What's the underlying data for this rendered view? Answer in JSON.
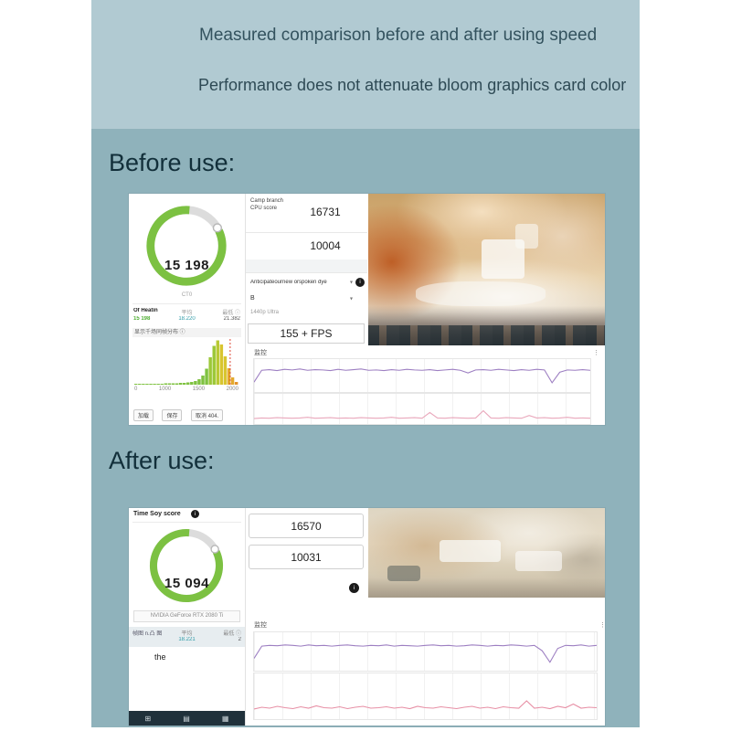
{
  "header": {
    "line1": "Measured comparison before and after using speed",
    "line2": "Performance does not attenuate bloom graphics card color"
  },
  "before": {
    "section_title": "Before use:",
    "gauge_card": {
      "score": "15 198",
      "sub_label": "CT0",
      "stats_header": [
        "Of Heatin",
        "平均",
        "最低 ⓘ"
      ],
      "stats_values": [
        "15 198",
        "18.220",
        "21.382"
      ],
      "hist_title": "显示千场同帧分布 ⓘ",
      "hist_axis": [
        "0",
        "1000",
        "1500",
        "2000"
      ],
      "footer_buttons": [
        "加载",
        "保存",
        "取消 404."
      ]
    },
    "score_panel": {
      "cpu_label": "Camp branch CPU score",
      "cpu_value": "16731",
      "value2": "10004",
      "dropdown1": "Anticipateournew orspoken dye",
      "dropdown2": "B",
      "preset": "1440p Ultra",
      "fps": "155 + FPS",
      "info_icon": "i"
    },
    "monitor": {
      "label": "监控",
      "menu_glyph": "⋮"
    }
  },
  "after": {
    "section_title": "After use:",
    "gauge_card": {
      "title": "Time Soy score",
      "info_icon": "i",
      "score": "15 094",
      "gpu_name": "NVIDIA GeForce RTX 2080 Ti",
      "stats_header": [
        "帧图 n.凸 图",
        "平均",
        "最低 ⓘ"
      ],
      "stats_values": [
        "",
        "18.221",
        "2"
      ],
      "note": "the",
      "taskbar_icons": [
        "⊞",
        "▤",
        "▦"
      ]
    },
    "score_panel": {
      "value1": "16570",
      "value2": "10031",
      "info_icon": "i"
    },
    "monitor": {
      "label": "监控",
      "menu_glyph": "⋮"
    }
  },
  "chart_data": [
    {
      "id": "before-monitor-line-1",
      "type": "line",
      "legend": "监控",
      "color": "#9d7fc2",
      "ylim": [
        0,
        100
      ],
      "points": [
        30,
        66,
        68,
        65,
        69,
        67,
        70,
        66,
        68,
        67,
        65,
        69,
        66,
        68,
        70,
        66,
        67,
        65,
        68,
        66,
        69,
        67,
        66,
        68,
        65,
        67,
        69,
        66,
        58,
        67,
        68,
        66,
        69,
        67,
        65,
        68,
        66,
        69,
        67,
        28,
        60,
        67,
        66,
        68,
        66
      ]
    },
    {
      "id": "before-monitor-line-2",
      "type": "line",
      "color": "#e9a7bb",
      "ylim": [
        0,
        100
      ],
      "points": [
        18,
        20,
        19,
        21,
        20,
        19,
        20,
        22,
        19,
        20,
        21,
        19,
        20,
        19,
        21,
        20,
        19,
        20,
        22,
        19,
        20,
        21,
        19,
        38,
        20,
        19,
        21,
        20,
        19,
        20,
        44,
        20,
        19,
        21,
        20,
        19,
        28,
        20,
        21,
        19,
        20,
        22,
        19,
        20,
        19
      ]
    },
    {
      "id": "after-monitor-line-1",
      "type": "line",
      "legend": "监控",
      "color": "#9d7fc2",
      "ylim": [
        0,
        100
      ],
      "points": [
        32,
        64,
        66,
        65,
        67,
        66,
        64,
        67,
        65,
        66,
        64,
        66,
        67,
        65,
        64,
        66,
        65,
        67,
        64,
        66,
        65,
        64,
        66,
        67,
        65,
        66,
        64,
        65,
        67,
        66,
        64,
        66,
        65,
        67,
        66,
        64,
        66,
        52,
        22,
        58,
        66,
        65,
        67,
        64,
        66
      ]
    },
    {
      "id": "after-monitor-line-2",
      "type": "line",
      "color": "#e78fa5",
      "ylim": [
        0,
        100
      ],
      "points": [
        22,
        26,
        24,
        28,
        25,
        23,
        27,
        24,
        29,
        25,
        24,
        27,
        23,
        26,
        28,
        24,
        25,
        27,
        24,
        26,
        23,
        28,
        25,
        24,
        27,
        25,
        23,
        26,
        28,
        24,
        26,
        23,
        27,
        25,
        24,
        40,
        24,
        26,
        23,
        28,
        25,
        33,
        24,
        26,
        25
      ]
    },
    {
      "id": "before-frametime-histogram",
      "type": "bar",
      "x_ticks": [
        "0",
        "1000",
        "1500",
        "2000"
      ],
      "values": [
        2,
        2,
        2,
        2,
        2,
        2,
        2,
        2,
        3,
        3,
        3,
        3,
        4,
        4,
        5,
        6,
        8,
        12,
        20,
        35,
        60,
        85,
        97,
        88,
        62,
        36,
        16,
        6
      ],
      "colors": [
        "#7fc241",
        "#7fc241",
        "#7fc241",
        "#7fc241",
        "#7fc241",
        "#7fc241",
        "#7fc241",
        "#7fc241",
        "#7fc241",
        "#7fc241",
        "#7fc241",
        "#7fc241",
        "#7fc241",
        "#7fc241",
        "#7fc241",
        "#7fc241",
        "#7fc241",
        "#7fc241",
        "#7fc241",
        "#7fc241",
        "#9cc838",
        "#9cc838",
        "#b9c934",
        "#d8c52f",
        "#d8c52f",
        "#e3a92d",
        "#e3a92d",
        "#e3932d"
      ],
      "marker_pct": 92,
      "marker_color": "#dd4433"
    }
  ]
}
